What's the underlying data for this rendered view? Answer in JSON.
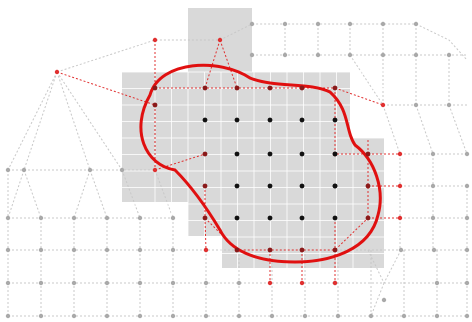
{
  "diagram": {
    "description_free": true,
    "colors": {
      "background": "#ffffff",
      "region_fill": "#d9d9d9",
      "boundary": "#e01010",
      "red_line": "#e03030",
      "mesh_line": "#c8c8c8",
      "inner_node": "#111111",
      "boundary_node": "#8a1a1a",
      "red_node": "#e03030",
      "outer_node": "#a9a9a9"
    },
    "legend": [],
    "labels": []
  }
}
